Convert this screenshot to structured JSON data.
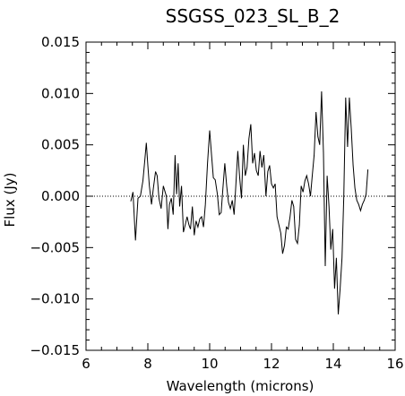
{
  "chart_data": {
    "type": "line",
    "title": "SSGSS_023_SL_B_2",
    "xlabel": "Wavelength (microns)",
    "ylabel": "Flux (Jy)",
    "xlim": [
      6,
      16
    ],
    "ylim": [
      -0.015,
      0.015
    ],
    "xticks": [
      6,
      8,
      10,
      12,
      14,
      16
    ],
    "yticks": [
      0.015,
      0.01,
      0.005,
      0.0,
      -0.005,
      -0.01,
      -0.015
    ],
    "xtick_labels": [
      "6",
      "8",
      "10",
      "12",
      "14",
      "16"
    ],
    "ytick_labels": [
      "0.015",
      "0.010",
      "0.005",
      "0.000",
      "−0.005",
      "−0.010",
      "−0.015"
    ],
    "zero_line": true,
    "grid": false,
    "series": [
      {
        "x": [
          7.45,
          7.52,
          7.6,
          7.68,
          7.76,
          7.84,
          7.9,
          7.95,
          8.0,
          8.05,
          8.12,
          8.18,
          8.25,
          8.3,
          8.36,
          8.43,
          8.5,
          8.55,
          8.6,
          8.65,
          8.7,
          8.76,
          8.82,
          8.88,
          8.93,
          8.98,
          9.03,
          9.09,
          9.15,
          9.21,
          9.27,
          9.33,
          9.38,
          9.44,
          9.5,
          9.56,
          9.62,
          9.68,
          9.74,
          9.8,
          9.86,
          9.93,
          10.0,
          10.06,
          10.12,
          10.18,
          10.25,
          10.31,
          10.37,
          10.43,
          10.49,
          10.55,
          10.61,
          10.67,
          10.73,
          10.79,
          10.85,
          10.91,
          10.97,
          11.03,
          11.09,
          11.15,
          11.21,
          11.27,
          11.33,
          11.39,
          11.45,
          11.51,
          11.57,
          11.63,
          11.69,
          11.75,
          11.82,
          11.88,
          11.94,
          12.0,
          12.06,
          12.12,
          12.18,
          12.24,
          12.3,
          12.36,
          12.42,
          12.48,
          12.54,
          12.6,
          12.66,
          12.72,
          12.78,
          12.84,
          12.9,
          12.96,
          13.02,
          13.08,
          13.14,
          13.2,
          13.26,
          13.32,
          13.38,
          13.44,
          13.5,
          13.56,
          13.62,
          13.68,
          13.74,
          13.8,
          13.86,
          13.92,
          13.98,
          14.04,
          14.1,
          14.16,
          14.22,
          14.28,
          14.34,
          14.4,
          14.46,
          14.52,
          14.58,
          14.64,
          14.7,
          14.76,
          14.82,
          14.88,
          14.94,
          15.0,
          15.06,
          15.12
        ],
        "y": [
          -0.0005,
          0.0004,
          -0.0043,
          -0.0002,
          0.0,
          0.0015,
          0.0035,
          0.0052,
          0.003,
          0.001,
          -0.0008,
          0.0008,
          0.0024,
          0.002,
          -0.0002,
          -0.0012,
          0.001,
          0.0005,
          0.0,
          -0.0032,
          -0.0008,
          -0.0002,
          -0.0018,
          0.004,
          0.0002,
          0.0032,
          -0.001,
          0.001,
          -0.0035,
          -0.0028,
          -0.002,
          -0.0028,
          -0.0032,
          -0.001,
          -0.0038,
          -0.0024,
          -0.003,
          -0.0022,
          -0.002,
          -0.003,
          -0.0008,
          0.0032,
          0.0064,
          0.004,
          0.0018,
          0.0016,
          0.0002,
          -0.0018,
          -0.0016,
          0.0008,
          0.0032,
          0.001,
          -0.0006,
          -0.0012,
          -0.0004,
          -0.0018,
          0.0012,
          0.0044,
          0.0018,
          -0.0002,
          0.005,
          0.002,
          0.0028,
          0.0056,
          0.007,
          0.0032,
          0.0042,
          0.0025,
          0.002,
          0.0044,
          0.0028,
          0.004,
          0.0,
          0.0024,
          0.003,
          0.0012,
          0.0008,
          0.0012,
          -0.002,
          -0.0028,
          -0.0036,
          -0.0056,
          -0.0048,
          -0.003,
          -0.0032,
          -0.002,
          -0.0004,
          -0.001,
          -0.0042,
          -0.0046,
          -0.0028,
          0.001,
          0.0004,
          0.0015,
          0.002,
          0.0012,
          0.0,
          0.002,
          0.004,
          0.0082,
          0.0058,
          0.005,
          0.0102,
          0.0042,
          -0.0068,
          0.002,
          -0.001,
          -0.0052,
          -0.0032,
          -0.009,
          -0.006,
          -0.0115,
          -0.009,
          -0.006,
          0.0,
          0.0096,
          0.0048,
          0.0096,
          0.0066,
          0.003,
          0.0008,
          -0.0004,
          -0.0008,
          -0.0014,
          -0.0008,
          -0.0004,
          0.0002,
          0.0026
        ]
      }
    ]
  }
}
